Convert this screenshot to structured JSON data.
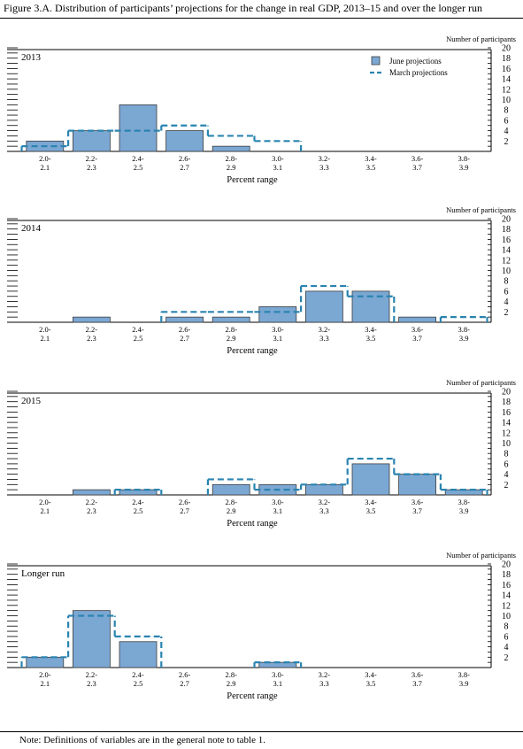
{
  "figure": {
    "title": "Figure 3.A. Distribution of participants’ projections for the change in real GDP, 2013–15 and over the longer run",
    "note": "Note: Definitions of variables are in the general note to table 1."
  },
  "chart_data": [
    {
      "type": "bar",
      "title": "2013",
      "xlabel": "Percent range",
      "ylabel": "Number of participants",
      "ylim": [
        0,
        20
      ],
      "yticks": [
        "2",
        "4",
        "6",
        "8",
        "10",
        "12",
        "14",
        "16",
        "18",
        "20"
      ],
      "categories": [
        [
          "2.0-",
          "2.1"
        ],
        [
          "2.2-",
          "2.3"
        ],
        [
          "2.4-",
          "2.5"
        ],
        [
          "2.6-",
          "2.7"
        ],
        [
          "2.8-",
          "2.9"
        ],
        [
          "3.0-",
          "3.1"
        ],
        [
          "3.2-",
          "3.3"
        ],
        [
          "3.4-",
          "3.5"
        ],
        [
          "3.6-",
          "3.7"
        ],
        [
          "3.8-",
          "3.9"
        ]
      ],
      "legend": {
        "position": "top-right",
        "entries": [
          "June projections",
          "March projections"
        ]
      },
      "series": [
        {
          "name": "June projections",
          "style": "bar",
          "values": [
            2,
            4,
            9,
            4,
            1,
            0,
            0,
            0,
            0,
            0
          ]
        },
        {
          "name": "March projections",
          "style": "dashed-step",
          "values": [
            1,
            4,
            4,
            5,
            3,
            2,
            0,
            0,
            0,
            0
          ]
        }
      ]
    },
    {
      "type": "bar",
      "title": "2014",
      "xlabel": "Percent range",
      "ylabel": "Number of participants",
      "ylim": [
        0,
        20
      ],
      "yticks": [
        "2",
        "4",
        "6",
        "8",
        "10",
        "12",
        "14",
        "16",
        "18",
        "20"
      ],
      "categories": [
        [
          "2.0-",
          "2.1"
        ],
        [
          "2.2-",
          "2.3"
        ],
        [
          "2.4-",
          "2.5"
        ],
        [
          "2.6-",
          "2.7"
        ],
        [
          "2.8-",
          "2.9"
        ],
        [
          "3.0-",
          "3.1"
        ],
        [
          "3.2-",
          "3.3"
        ],
        [
          "3.4-",
          "3.5"
        ],
        [
          "3.6-",
          "3.7"
        ],
        [
          "3.8-",
          "3.9"
        ]
      ],
      "series": [
        {
          "name": "June projections",
          "style": "bar",
          "values": [
            0,
            1,
            0,
            1,
            1,
            3,
            6,
            6,
            1,
            0
          ]
        },
        {
          "name": "March projections",
          "style": "dashed-step",
          "values": [
            0,
            0,
            0,
            2,
            2,
            2,
            7,
            5,
            0,
            1
          ]
        }
      ]
    },
    {
      "type": "bar",
      "title": "2015",
      "xlabel": "Percent range",
      "ylabel": "Number of participants",
      "ylim": [
        0,
        20
      ],
      "yticks": [
        "2",
        "4",
        "6",
        "8",
        "10",
        "12",
        "14",
        "16",
        "18",
        "20"
      ],
      "categories": [
        [
          "2.0-",
          "2.1"
        ],
        [
          "2.2-",
          "2.3"
        ],
        [
          "2.4-",
          "2.5"
        ],
        [
          "2.6-",
          "2.7"
        ],
        [
          "2.8-",
          "2.9"
        ],
        [
          "3.0-",
          "3.1"
        ],
        [
          "3.2-",
          "3.3"
        ],
        [
          "3.4-",
          "3.5"
        ],
        [
          "3.6-",
          "3.7"
        ],
        [
          "3.8-",
          "3.9"
        ]
      ],
      "series": [
        {
          "name": "June projections",
          "style": "bar",
          "values": [
            0,
            1,
            1,
            0,
            2,
            2,
            2,
            6,
            4,
            1
          ]
        },
        {
          "name": "March projections",
          "style": "dashed-step",
          "values": [
            0,
            0,
            1,
            0,
            3,
            1,
            2,
            7,
            4,
            1
          ]
        }
      ]
    },
    {
      "type": "bar",
      "title": "Longer run",
      "xlabel": "Percent range",
      "ylabel": "Number of participants",
      "ylim": [
        0,
        20
      ],
      "yticks": [
        "2",
        "4",
        "6",
        "8",
        "10",
        "12",
        "14",
        "16",
        "18",
        "20"
      ],
      "categories": [
        [
          "2.0-",
          "2.1"
        ],
        [
          "2.2-",
          "2.3"
        ],
        [
          "2.4-",
          "2.5"
        ],
        [
          "2.6-",
          "2.7"
        ],
        [
          "2.8-",
          "2.9"
        ],
        [
          "3.0-",
          "3.1"
        ],
        [
          "3.2-",
          "3.3"
        ],
        [
          "3.4-",
          "3.5"
        ],
        [
          "3.6-",
          "3.7"
        ],
        [
          "3.8-",
          "3.9"
        ]
      ],
      "series": [
        {
          "name": "June projections",
          "style": "bar",
          "values": [
            2,
            11,
            5,
            0,
            0,
            1,
            0,
            0,
            0,
            0
          ]
        },
        {
          "name": "March projections",
          "style": "dashed-step",
          "values": [
            2,
            10,
            6,
            0,
            0,
            1,
            0,
            0,
            0,
            0
          ]
        }
      ]
    }
  ],
  "colors": {
    "bar_fill": "#7ba7d3",
    "bar_stroke": "#3d3d3d",
    "march_line": "#2a84b0",
    "axis": "#000000"
  }
}
